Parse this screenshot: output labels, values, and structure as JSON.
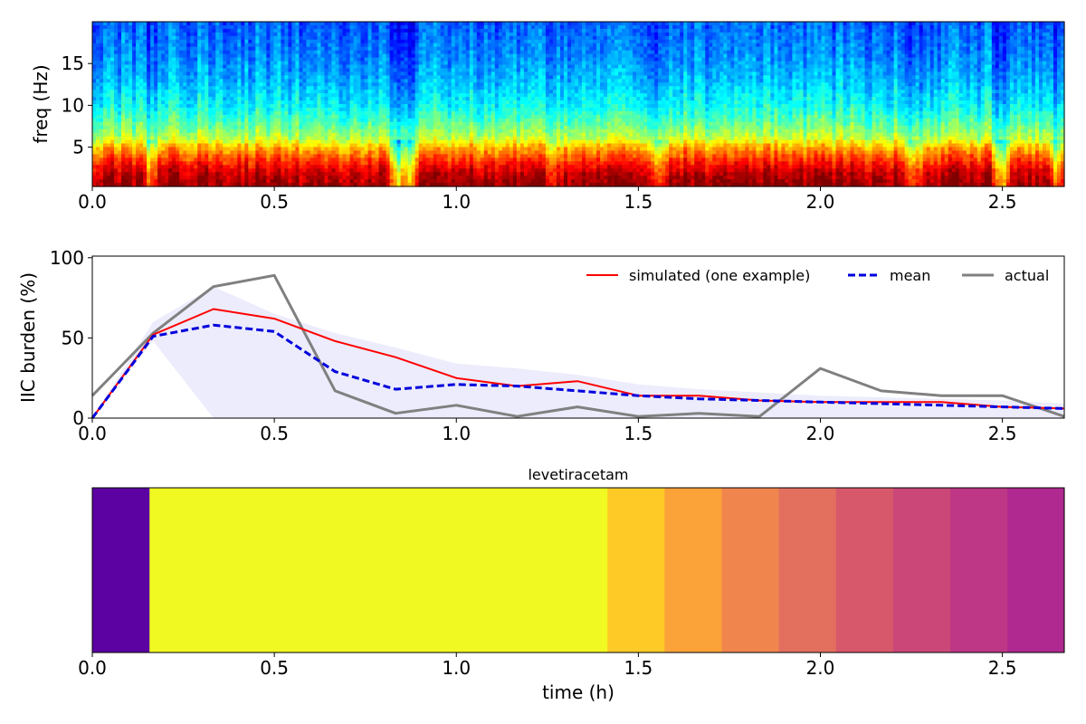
{
  "chart_data": [
    {
      "type": "heatmap",
      "title": "",
      "xlabel": "",
      "ylabel": "freq (Hz)",
      "xlim": [
        0,
        2.67
      ],
      "ylim": [
        0.3,
        20
      ],
      "xticks": [
        0.0,
        0.5,
        1.0,
        1.5,
        2.0,
        2.5
      ],
      "xtick_labels": [
        "0.0",
        "0.5",
        "1.0",
        "1.5",
        "2.0",
        "2.5"
      ],
      "yticks": [
        5,
        10,
        15
      ],
      "ytick_labels": [
        "5",
        "10",
        "15"
      ],
      "colormap": "jet",
      "band_profile": [
        {
          "freq": 0.5,
          "level": 0.98
        },
        {
          "freq": 2.0,
          "level": 0.93
        },
        {
          "freq": 3.0,
          "level": 0.86
        },
        {
          "freq": 4.0,
          "level": 0.78
        },
        {
          "freq": 5.0,
          "level": 0.7
        },
        {
          "freq": 6.0,
          "level": 0.57
        },
        {
          "freq": 8.0,
          "level": 0.46
        },
        {
          "freq": 10.0,
          "level": 0.38
        },
        {
          "freq": 13.0,
          "level": 0.31
        },
        {
          "freq": 16.0,
          "level": 0.26
        },
        {
          "freq": 20.0,
          "level": 0.22
        }
      ],
      "dips": [
        {
          "t": 0.16,
          "depth": 0.12
        },
        {
          "t": 0.84,
          "depth": 0.25
        },
        {
          "t": 0.87,
          "depth": 0.2
        },
        {
          "t": 1.27,
          "depth": 0.08
        },
        {
          "t": 1.56,
          "depth": 0.12
        },
        {
          "t": 2.26,
          "depth": 0.12
        },
        {
          "t": 2.5,
          "depth": 0.22
        },
        {
          "t": 2.65,
          "depth": 0.15
        }
      ]
    },
    {
      "type": "line",
      "title": "",
      "xlabel": "",
      "ylabel": "IIC burden (%)",
      "xlim": [
        0,
        2.67
      ],
      "ylim": [
        0,
        101
      ],
      "xticks": [
        0.0,
        0.5,
        1.0,
        1.5,
        2.0,
        2.5
      ],
      "xtick_labels": [
        "0.0",
        "0.5",
        "1.0",
        "1.5",
        "2.0",
        "2.5"
      ],
      "yticks": [
        0,
        50,
        100
      ],
      "ytick_labels": [
        "0",
        "50",
        "100"
      ],
      "legend_position": "top-right",
      "band": {
        "x": [
          0.0,
          0.167,
          0.333,
          0.5,
          0.667,
          0.833,
          1.0,
          1.167,
          1.333,
          1.5,
          1.667,
          1.833,
          2.0,
          2.167,
          2.333,
          2.5,
          2.67
        ],
        "lower": [
          0,
          48,
          0,
          0,
          0,
          0,
          0,
          0,
          0,
          0,
          0,
          0,
          0,
          0,
          0,
          0,
          0
        ],
        "upper": [
          0,
          60,
          82,
          65,
          53,
          44,
          34,
          31,
          27,
          21,
          18,
          16,
          14,
          13,
          12,
          11,
          9
        ],
        "color": "#ececfc"
      },
      "series": [
        {
          "name": "simulated (one example)",
          "color": "#ff0000",
          "dash": "solid",
          "x": [
            0.0,
            0.167,
            0.333,
            0.5,
            0.667,
            0.833,
            1.0,
            1.167,
            1.333,
            1.5,
            1.667,
            1.833,
            2.0,
            2.167,
            2.333,
            2.5,
            2.67
          ],
          "values": [
            0,
            52,
            68,
            62,
            48,
            38,
            25,
            20,
            23,
            14,
            14,
            11,
            10,
            10,
            10,
            7,
            6
          ]
        },
        {
          "name": "mean",
          "color": "#0000dd",
          "dash": "dashed",
          "x": [
            0.0,
            0.167,
            0.333,
            0.5,
            0.667,
            0.833,
            1.0,
            1.167,
            1.333,
            1.5,
            1.667,
            1.833,
            2.0,
            2.167,
            2.333,
            2.5,
            2.67
          ],
          "values": [
            0,
            51,
            58,
            54,
            29,
            18,
            21,
            20,
            17,
            14,
            12,
            11,
            10,
            9,
            8,
            7,
            6
          ]
        },
        {
          "name": "actual",
          "color": "#808080",
          "dash": "solid",
          "x": [
            0.0,
            0.167,
            0.333,
            0.5,
            0.667,
            0.833,
            1.0,
            1.167,
            1.333,
            1.5,
            1.667,
            1.833,
            2.0,
            2.167,
            2.333,
            2.5,
            2.67
          ],
          "values": [
            14,
            53,
            82,
            89,
            17,
            3,
            8,
            1,
            7,
            1,
            3,
            1,
            31,
            17,
            14,
            14,
            1
          ]
        }
      ]
    },
    {
      "type": "heatmap",
      "title": "levetiracetam",
      "xlabel": "time (h)",
      "ylabel": "",
      "xlim": [
        0,
        2.67
      ],
      "xticks": [
        0.0,
        0.5,
        1.0,
        1.5,
        2.0,
        2.5
      ],
      "xtick_labels": [
        "0.0",
        "0.5",
        "1.0",
        "1.5",
        "2.0",
        "2.5"
      ],
      "colormap": "plasma",
      "segments": [
        {
          "start": 0.0,
          "end": 0.157,
          "color": "#5c02a3"
        },
        {
          "start": 0.157,
          "end": 1.415,
          "color": "#f0f921"
        },
        {
          "start": 1.415,
          "end": 1.572,
          "color": "#fdca26"
        },
        {
          "start": 1.572,
          "end": 1.729,
          "color": "#fba238"
        },
        {
          "start": 1.729,
          "end": 1.886,
          "color": "#f0864e"
        },
        {
          "start": 1.886,
          "end": 2.043,
          "color": "#e36f5f"
        },
        {
          "start": 2.043,
          "end": 2.2,
          "color": "#d8586b"
        },
        {
          "start": 2.2,
          "end": 2.357,
          "color": "#ca4778"
        },
        {
          "start": 2.357,
          "end": 2.514,
          "color": "#bd3786"
        },
        {
          "start": 2.514,
          "end": 2.67,
          "color": "#b02991"
        }
      ]
    }
  ]
}
